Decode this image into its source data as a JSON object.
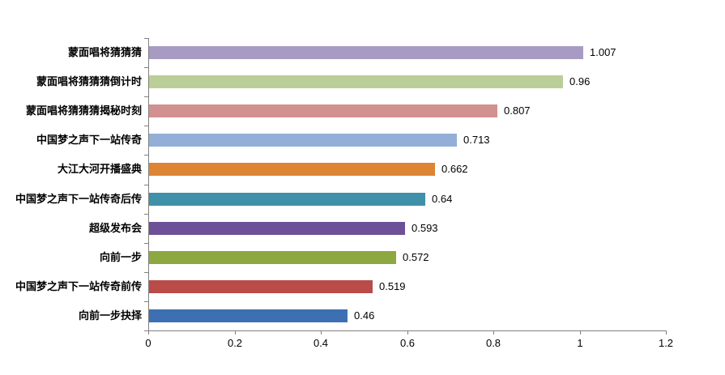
{
  "chart_data": {
    "type": "bar",
    "orientation": "horizontal",
    "title": "",
    "xlabel": "",
    "ylabel": "",
    "xlim": [
      0,
      1.2
    ],
    "grid": false,
    "legend": "none",
    "x_ticks": [
      "0",
      "0.2",
      "0.4",
      "0.6",
      "0.8",
      "1",
      "1.2"
    ],
    "x_tick_values": [
      0,
      0.2,
      0.4,
      0.6,
      0.8,
      1.0,
      1.2
    ],
    "categories": [
      "蒙面唱将猜猜猜",
      "蒙面唱将猜猜猜倒计时",
      "蒙面唱将猜猜猜揭秘时刻",
      "中国梦之声下一站传奇",
      "大江大河开播盛典",
      "中国梦之声下一站传奇后传",
      "超级发布会",
      "向前一步",
      "中国梦之声下一站传奇前传",
      "向前一步抉择"
    ],
    "values": [
      1.007,
      0.96,
      0.807,
      0.713,
      0.662,
      0.64,
      0.593,
      0.572,
      0.519,
      0.46
    ],
    "value_labels": [
      "1.007",
      "0.96",
      "0.807",
      "0.713",
      "0.662",
      "0.64",
      "0.593",
      "0.572",
      "0.519",
      "0.46"
    ],
    "bar_colors": [
      "#A89BC3",
      "#BCCE97",
      "#D29090",
      "#93AFD7",
      "#DD8435",
      "#3E91A8",
      "#6C5199",
      "#8DA741",
      "#B94B48",
      "#3C70B3"
    ],
    "axis_color": "#808080",
    "text_color": "#000000",
    "background_color": "#FFFFFF"
  }
}
